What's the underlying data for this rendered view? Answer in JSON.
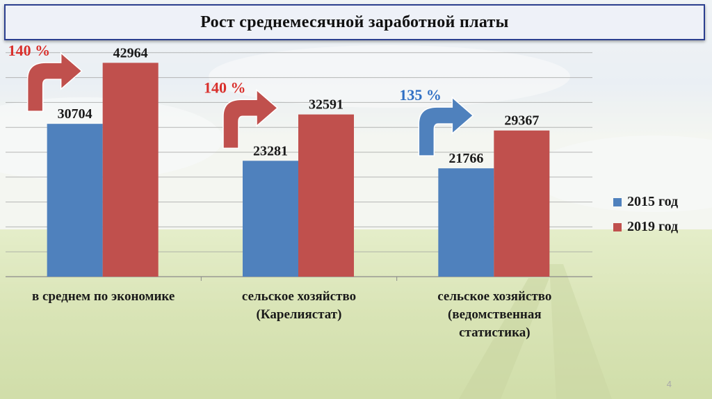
{
  "title": "Рост среднемесячной заработной платы",
  "page_number": "4",
  "colors": {
    "series_2015": "#4f81bd",
    "series_2019": "#c0504d",
    "title_border": "#2b3f8f"
  },
  "chart_data": {
    "type": "bar",
    "title": "Рост среднемесячной заработной платы",
    "categories": [
      [
        "в среднем по экономике"
      ],
      [
        "сельское хозяйство",
        "(Карелиястат)"
      ],
      [
        "сельское хозяйство",
        "(ведомственная",
        "статистика)"
      ]
    ],
    "series": [
      {
        "name": "2015 год",
        "color": "#4f81bd",
        "values": [
          30704,
          23281,
          21766
        ]
      },
      {
        "name": "2019 год",
        "color": "#c0504d",
        "values": [
          42964,
          32591,
          29367
        ]
      }
    ],
    "growth_labels": [
      {
        "text": "140 %",
        "color": "#d9302c",
        "arrow_color": "#c0504d"
      },
      {
        "text": "140 %",
        "color": "#d9302c",
        "arrow_color": "#c0504d"
      },
      {
        "text": "135 %",
        "color": "#2f6fc4",
        "arrow_color": "#4f81bd"
      }
    ],
    "ylim": [
      0,
      50000
    ],
    "grid": true,
    "legend": "right"
  }
}
